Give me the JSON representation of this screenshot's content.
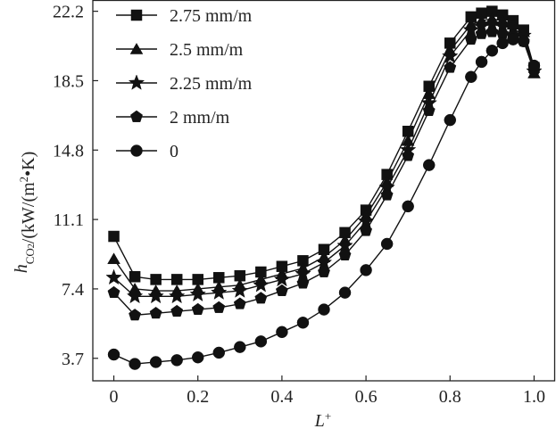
{
  "chart_data": {
    "type": "line",
    "xlabel": {
      "base": "L",
      "sup": "+"
    },
    "ylabel": {
      "pre": "h",
      "sub": "CO",
      "subsub": "2",
      "post": "/(kW/(m",
      "sup": "2",
      "end": "•K)"
    },
    "xlim": [
      -0.05,
      1.05
    ],
    "ylim": [
      2.5,
      22.8
    ],
    "xticks": [
      0,
      0.2,
      0.4,
      0.6,
      0.8,
      1.0
    ],
    "xtick_labels": [
      "0",
      "0.2",
      "0.4",
      "0.6",
      "0.8",
      "1.0"
    ],
    "yticks": [
      3.7,
      7.4,
      11.1,
      14.8,
      18.5,
      22.2
    ],
    "ytick_labels": [
      "3.7",
      "7.4",
      "11.1",
      "14.8",
      "18.5",
      "22.2"
    ],
    "grid": false,
    "legend_position": "top-left",
    "x": [
      0,
      0.05,
      0.1,
      0.15,
      0.2,
      0.25,
      0.3,
      0.35,
      0.4,
      0.45,
      0.5,
      0.55,
      0.6,
      0.65,
      0.7,
      0.75,
      0.8,
      0.85,
      0.875,
      0.9,
      0.925,
      0.95,
      0.975,
      1.0
    ],
    "series": [
      {
        "name": "2.75 mm/m",
        "marker": "square",
        "values": [
          10.2,
          8.05,
          7.9,
          7.9,
          7.9,
          8.0,
          8.1,
          8.3,
          8.6,
          8.9,
          9.5,
          10.4,
          11.6,
          13.5,
          15.8,
          18.2,
          20.5,
          21.9,
          22.1,
          22.2,
          22.0,
          21.7,
          21.2,
          19.2
        ]
      },
      {
        "name": "2.5 mm/m",
        "marker": "triangle",
        "values": [
          9.0,
          7.4,
          7.3,
          7.3,
          7.4,
          7.5,
          7.6,
          7.9,
          8.2,
          8.5,
          9.1,
          10.0,
          11.3,
          13.1,
          15.3,
          17.8,
          20.1,
          21.5,
          21.7,
          21.8,
          21.7,
          21.5,
          21.1,
          18.9
        ]
      },
      {
        "name": "2.25 mm/m",
        "marker": "star",
        "values": [
          8.0,
          7.0,
          7.0,
          7.0,
          7.1,
          7.2,
          7.3,
          7.6,
          7.9,
          8.2,
          8.8,
          9.7,
          11.0,
          12.8,
          14.8,
          17.3,
          19.8,
          21.2,
          21.4,
          21.5,
          21.4,
          21.3,
          20.9,
          19.0
        ]
      },
      {
        "name": "2 mm/m",
        "marker": "pentagon",
        "values": [
          7.2,
          6.0,
          6.1,
          6.2,
          6.3,
          6.4,
          6.6,
          6.9,
          7.3,
          7.7,
          8.3,
          9.2,
          10.5,
          12.4,
          14.5,
          16.9,
          19.2,
          20.7,
          21.0,
          21.1,
          21.0,
          20.9,
          20.6,
          19.0
        ]
      },
      {
        "name": "0",
        "marker": "circle",
        "values": [
          3.9,
          3.4,
          3.5,
          3.6,
          3.75,
          4.0,
          4.3,
          4.6,
          5.1,
          5.6,
          6.3,
          7.2,
          8.4,
          9.8,
          11.8,
          14.0,
          16.4,
          18.7,
          19.5,
          20.1,
          20.5,
          20.7,
          20.6,
          19.3
        ]
      }
    ]
  }
}
